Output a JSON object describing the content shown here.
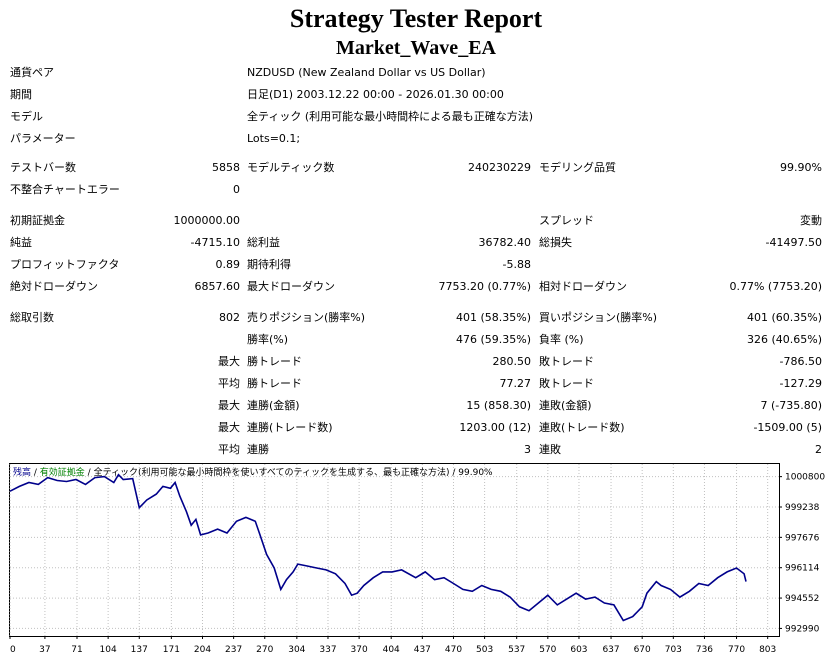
{
  "header": {
    "title": "Strategy Tester Report",
    "subtitle": "Market_Wave_EA"
  },
  "info": {
    "symbol_label": "通貨ペア",
    "symbol_value": "NZDUSD (New Zealand Dollar vs US Dollar)",
    "period_label": "期間",
    "period_value": "日足(D1) 2003.12.22 00:00 - 2026.01.30 00:00",
    "model_label": "モデル",
    "model_value": "全ティック (利用可能な最小時間枠による最も正確な方法)",
    "params_label": "パラメーター",
    "params_value": "Lots=0.1;"
  },
  "stats": {
    "bars_label": "テストバー数",
    "bars_value": "5858",
    "ticks_label": "モデルティック数",
    "ticks_value": "240230229",
    "quality_label": "モデリング品質",
    "quality_value": "99.90%",
    "mismatch_label": "不整合チャートエラー",
    "mismatch_value": "0",
    "deposit_label": "初期証拠金",
    "deposit_value": "1000000.00",
    "spread_label": "スプレッド",
    "spread_value": "変動",
    "net_label": "純益",
    "net_value": "-4715.10",
    "gross_profit_label": "総利益",
    "gross_profit_value": "36782.40",
    "gross_loss_label": "総損失",
    "gross_loss_value": "-41497.50",
    "pf_label": "プロフィットファクタ",
    "pf_value": "0.89",
    "expected_label": "期待利得",
    "expected_value": "-5.88",
    "abs_dd_label": "絶対ドローダウン",
    "abs_dd_value": "6857.60",
    "max_dd_label": "最大ドローダウン",
    "max_dd_value": "7753.20 (0.77%)",
    "rel_dd_label": "相対ドローダウン",
    "rel_dd_value": "0.77% (7753.20)",
    "total_label": "総取引数",
    "total_value": "802",
    "short_label": "売りポジション(勝率%)",
    "short_value": "401 (58.35%)",
    "long_label": "買いポジション(勝率%)",
    "long_value": "401 (60.35%)",
    "win_label": "勝率(%)",
    "win_value": "476 (59.35%)",
    "loss_label": "負率 (%)",
    "loss_value": "326 (40.65%)",
    "max1": "最大",
    "lp_label": "勝トレード",
    "lp_value": "280.50",
    "ll_label": "敗トレード",
    "ll_value": "-786.50",
    "avg1": "平均",
    "ap_label": "勝トレード",
    "ap_value": "77.27",
    "al_label": "敗トレード",
    "al_value": "-127.29",
    "max2": "最大",
    "mcw_label": "連勝(金額)",
    "mcw_value": "15 (858.30)",
    "mcl_label": "連敗(金額)",
    "mcl_value": "7 (-735.80)",
    "max3": "最大",
    "mcp_label": "連勝(トレード数)",
    "mcp_value": "1203.00 (12)",
    "mcll_label": "連敗(トレード数)",
    "mcll_value": "-1509.00 (5)",
    "avg2": "平均",
    "acw_label": "連勝",
    "acw_value": "3",
    "acl_label": "連敗",
    "acl_value": "2"
  },
  "chart_legend": {
    "balance": "残高",
    "sep1": " / ",
    "equity": "有効証拠金",
    "sep2": " / ",
    "model": "全ティック(利用可能な最小時間枠を使いすべてのティックを生成する、最も正確な方法)",
    "sep3": " / ",
    "quality": "99.90%"
  },
  "colors": {
    "line": "#00008b",
    "grid": "#c0c0c0",
    "equity": "#008000",
    "background": "#ffffff"
  },
  "chart_data": {
    "type": "line",
    "xlabel": "",
    "ylabel": "",
    "x_ticks": [
      0,
      37,
      71,
      104,
      137,
      171,
      204,
      237,
      270,
      304,
      337,
      370,
      404,
      437,
      470,
      503,
      537,
      570,
      603,
      637,
      670,
      703,
      736,
      770,
      803
    ],
    "y_ticks": [
      992990,
      994552,
      996114,
      997676,
      999238,
      1000800
    ],
    "xlim": [
      0,
      815
    ],
    "ylim": [
      992600,
      1001450
    ],
    "grid": true,
    "series": [
      {
        "name": "残高",
        "points": [
          [
            0,
            1000050
          ],
          [
            10,
            1000300
          ],
          [
            20,
            1000500
          ],
          [
            30,
            1000400
          ],
          [
            40,
            1000750
          ],
          [
            50,
            1000600
          ],
          [
            60,
            1000550
          ],
          [
            70,
            1000650
          ],
          [
            80,
            1000400
          ],
          [
            90,
            1000750
          ],
          [
            100,
            1000800
          ],
          [
            110,
            1000500
          ],
          [
            115,
            1000900
          ],
          [
            120,
            1000650
          ],
          [
            130,
            1000700
          ],
          [
            137,
            999200
          ],
          [
            145,
            999600
          ],
          [
            155,
            999900
          ],
          [
            162,
            1000300
          ],
          [
            170,
            1000200
          ],
          [
            175,
            1000500
          ],
          [
            180,
            999800
          ],
          [
            187,
            999000
          ],
          [
            192,
            998300
          ],
          [
            197,
            998600
          ],
          [
            202,
            997800
          ],
          [
            210,
            997900
          ],
          [
            220,
            998100
          ],
          [
            230,
            997900
          ],
          [
            240,
            998500
          ],
          [
            250,
            998700
          ],
          [
            260,
            998500
          ],
          [
            265,
            997800
          ],
          [
            272,
            996800
          ],
          [
            280,
            996100
          ],
          [
            287,
            995000
          ],
          [
            293,
            995500
          ],
          [
            300,
            995900
          ],
          [
            305,
            996300
          ],
          [
            315,
            996200
          ],
          [
            325,
            996100
          ],
          [
            335,
            996000
          ],
          [
            345,
            995800
          ],
          [
            355,
            995300
          ],
          [
            362,
            994700
          ],
          [
            368,
            994800
          ],
          [
            375,
            995200
          ],
          [
            385,
            995600
          ],
          [
            395,
            995900
          ],
          [
            405,
            995900
          ],
          [
            415,
            996000
          ],
          [
            430,
            995600
          ],
          [
            440,
            995900
          ],
          [
            450,
            995500
          ],
          [
            460,
            995600
          ],
          [
            470,
            995300
          ],
          [
            480,
            995000
          ],
          [
            490,
            994900
          ],
          [
            500,
            995200
          ],
          [
            510,
            995000
          ],
          [
            520,
            994900
          ],
          [
            530,
            994600
          ],
          [
            540,
            994100
          ],
          [
            550,
            993900
          ],
          [
            560,
            994300
          ],
          [
            570,
            994700
          ],
          [
            580,
            994200
          ],
          [
            590,
            994500
          ],
          [
            600,
            994800
          ],
          [
            610,
            994500
          ],
          [
            620,
            994600
          ],
          [
            630,
            994300
          ],
          [
            640,
            994200
          ],
          [
            650,
            993400
          ],
          [
            660,
            993600
          ],
          [
            670,
            994100
          ],
          [
            675,
            994800
          ],
          [
            685,
            995400
          ],
          [
            690,
            995200
          ],
          [
            700,
            995000
          ],
          [
            710,
            994600
          ],
          [
            720,
            994900
          ],
          [
            730,
            995300
          ],
          [
            740,
            995200
          ],
          [
            750,
            995600
          ],
          [
            760,
            995900
          ],
          [
            770,
            996100
          ],
          [
            778,
            995800
          ],
          [
            780,
            995400
          ]
        ]
      }
    ]
  }
}
